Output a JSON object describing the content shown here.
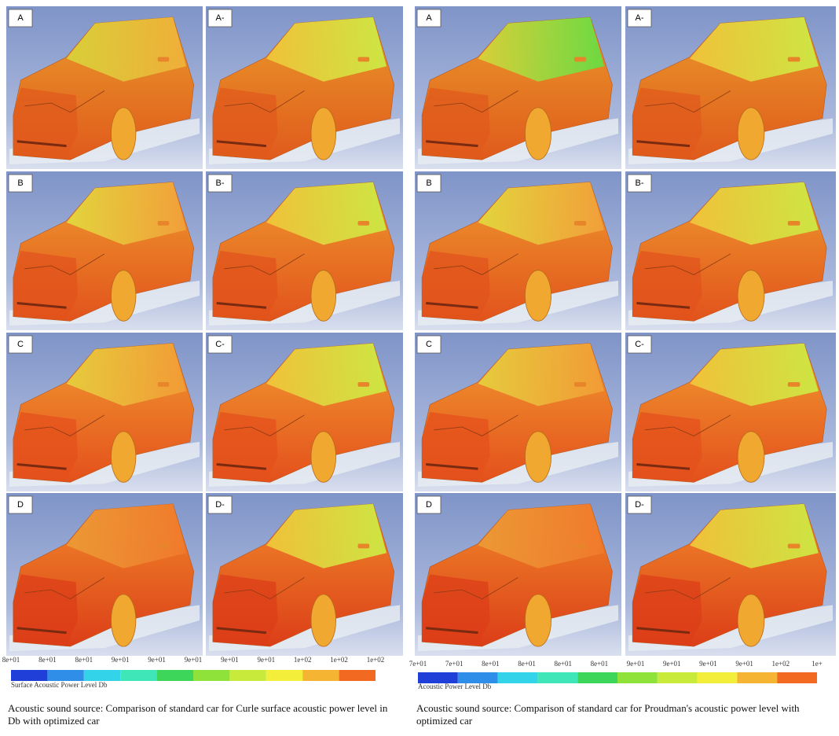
{
  "panels": [
    {
      "tiles": [
        "A",
        "A-",
        "B",
        "B-",
        "C",
        "C-",
        "D",
        "D-"
      ],
      "colorbar": {
        "ticks": [
          "8e+01",
          "8e+01",
          "8e+01",
          "9e+01",
          "9e+01",
          "9e+01",
          "9e+01",
          "9e+01",
          "1e+02",
          "1e+02",
          "1e+02"
        ],
        "title": "Surface Acoustic Power Level Db"
      },
      "caption": "Acoustic sound source: Comparison of standard car for Curle surface acoustic power level in Db with optimized car"
    },
    {
      "tiles": [
        "A",
        "A-",
        "B",
        "B-",
        "C",
        "C-",
        "D",
        "D-"
      ],
      "colorbar": {
        "ticks": [
          "7e+01",
          "7e+01",
          "8e+01",
          "8e+01",
          "8e+01",
          "8e+01",
          "9e+01",
          "9e+01",
          "9e+01",
          "9e+01",
          "1e+02",
          "1e+"
        ],
        "title": "Acoustic Power Level Db"
      },
      "caption": "Acoustic sound source: Comparison of standard car for Proudman's acoustic power level with optimized car"
    }
  ]
}
